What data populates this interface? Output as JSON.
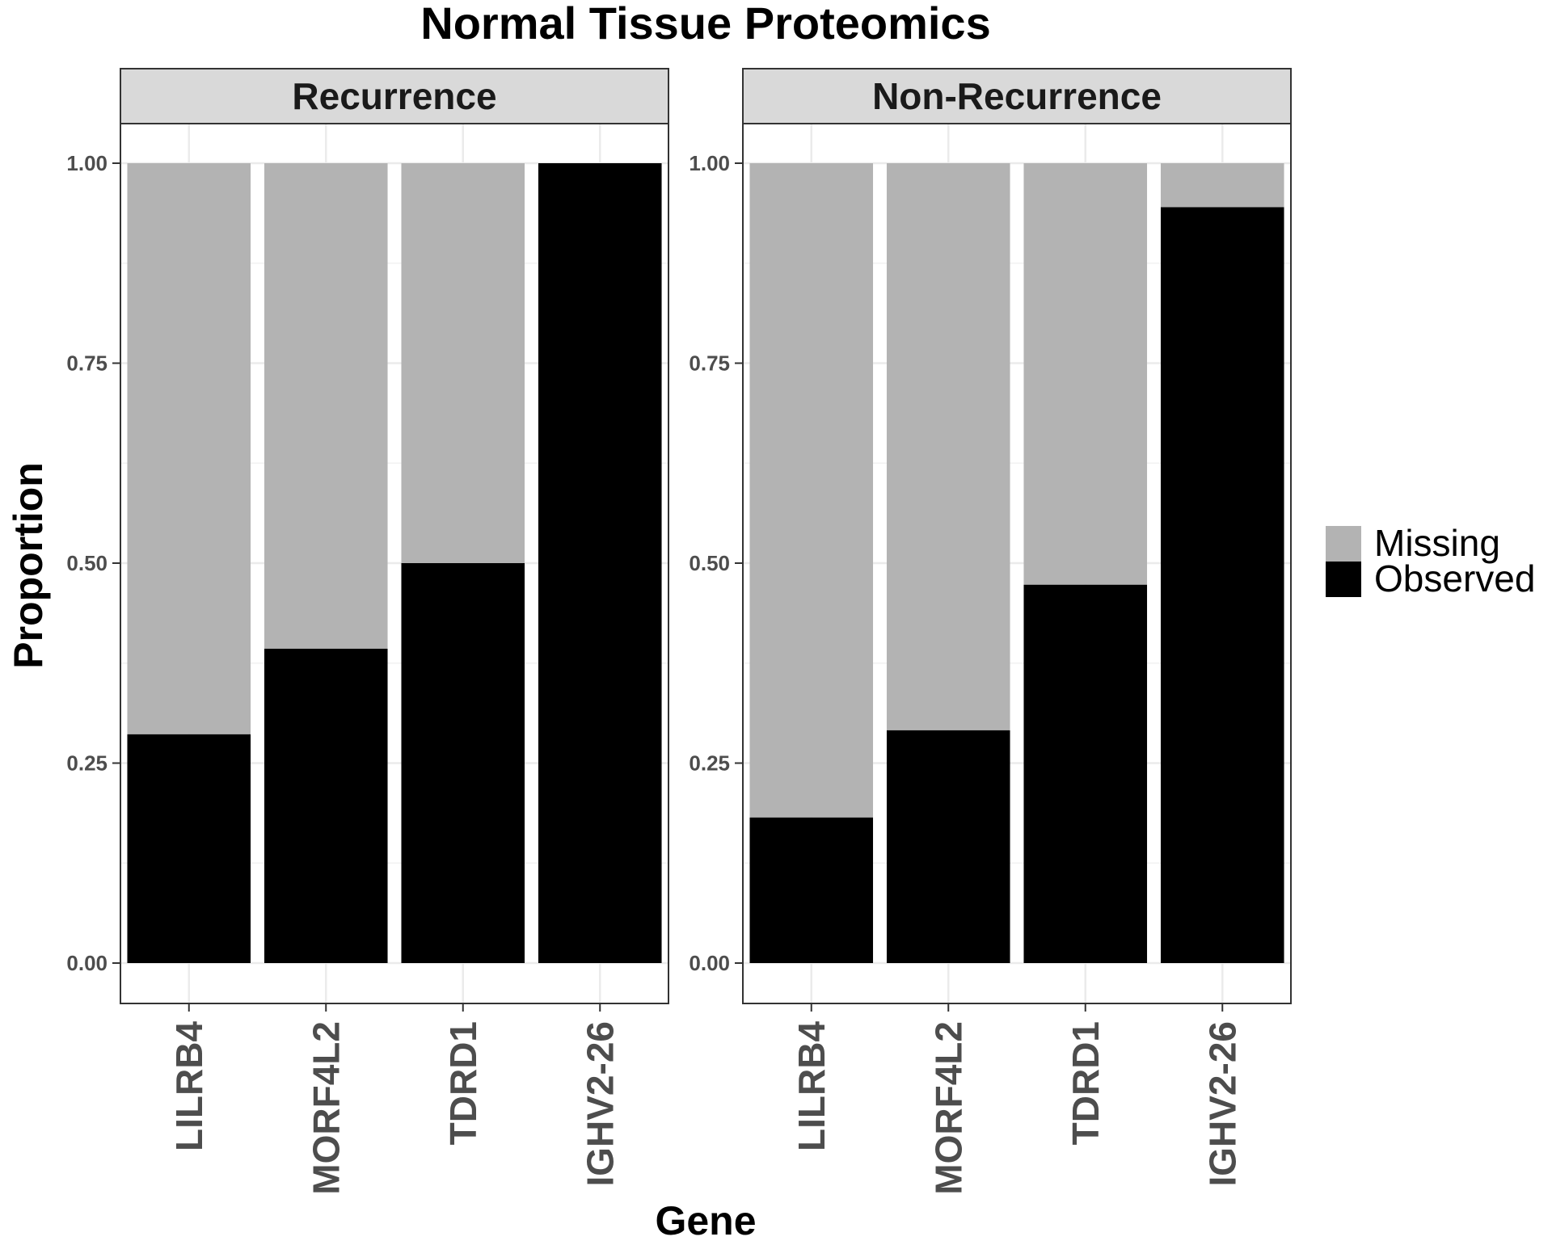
{
  "chart_data": {
    "type": "bar",
    "stacked": true,
    "title": "Normal Tissue Proteomics",
    "xlabel": "Gene",
    "ylabel": "Proportion",
    "ylim": [
      -0.05,
      1.05
    ],
    "yticks": [
      "0.00",
      "0.25",
      "0.50",
      "0.75",
      "1.00"
    ],
    "grid": true,
    "legend_position": "right",
    "categories": [
      "LILRB4",
      "MORF4L2",
      "TDRD1",
      "IGHV2-26"
    ],
    "legend": [
      {
        "name": "Missing",
        "color": "#b3b3b3"
      },
      {
        "name": "Observed",
        "color": "#000000"
      }
    ],
    "panels": [
      {
        "name": "Recurrence",
        "series": [
          {
            "name": "Observed",
            "values": [
              0.286,
              0.393,
              0.5,
              1.0
            ]
          },
          {
            "name": "Missing",
            "values": [
              0.714,
              0.607,
              0.5,
              0.0
            ]
          }
        ]
      },
      {
        "name": "Non-Recurrence",
        "series": [
          {
            "name": "Observed",
            "values": [
              0.182,
              0.291,
              0.473,
              0.945
            ]
          },
          {
            "name": "Missing",
            "values": [
              0.818,
              0.709,
              0.527,
              0.055
            ]
          }
        ]
      }
    ]
  }
}
